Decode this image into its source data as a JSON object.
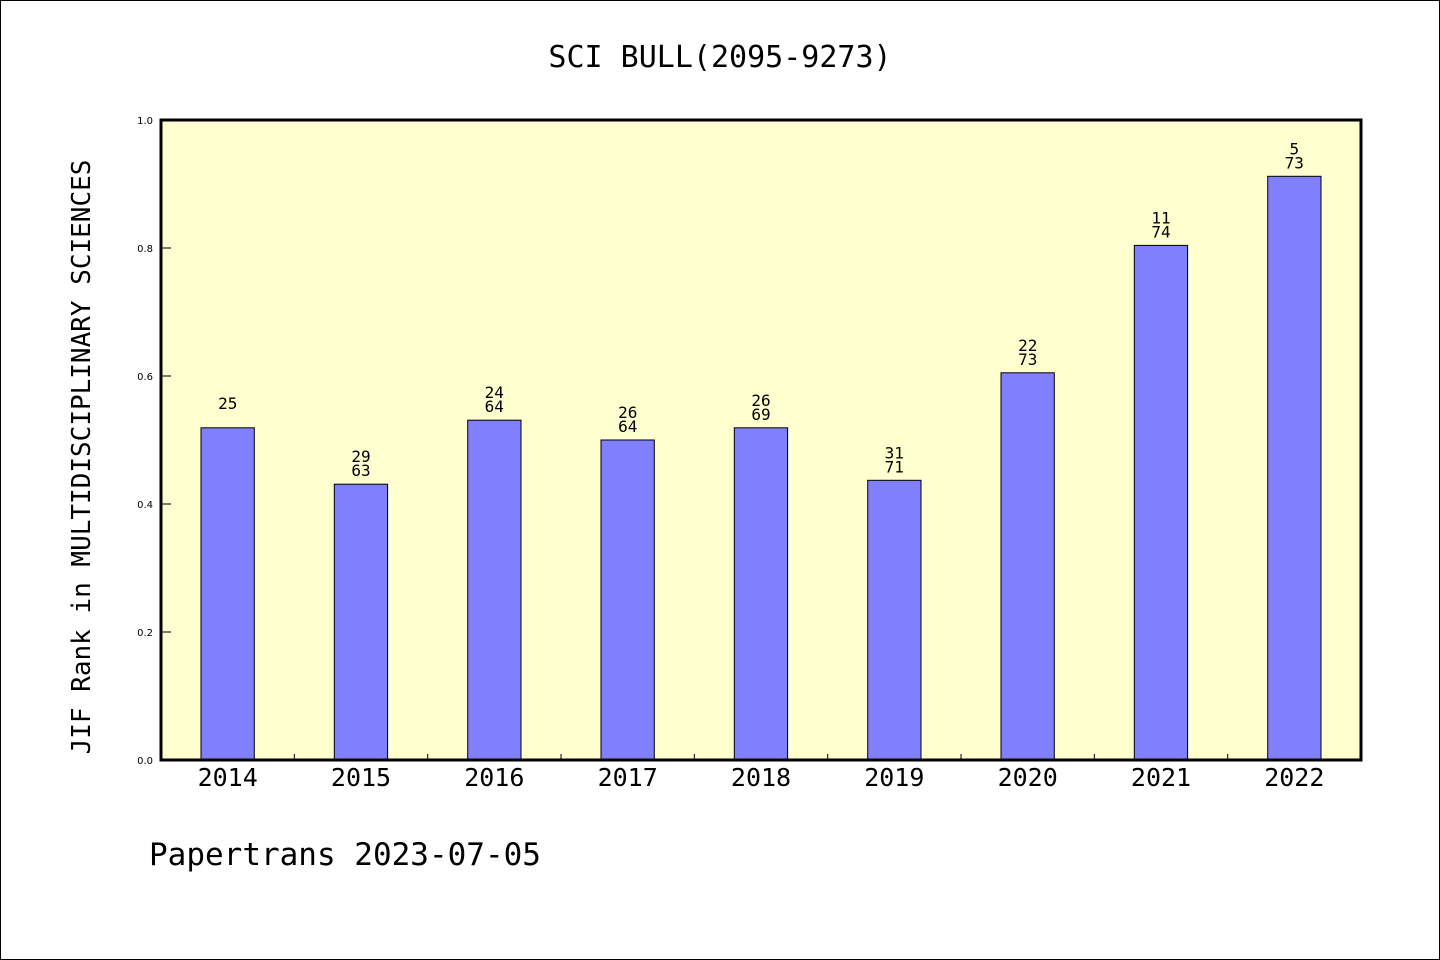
{
  "chart_data": {
    "type": "bar",
    "title": "SCI BULL(2095-9273)",
    "xlabel": "",
    "ylabel": "JIF Rank in MULTIDISCIPLINARY SCIENCES",
    "ylim": [
      0.0,
      1.0
    ],
    "yticks": [
      "0.0",
      "0.2",
      "0.4",
      "0.6",
      "0.8",
      "1.0"
    ],
    "grid": false,
    "categories": [
      "2014",
      "2015",
      "2016",
      "2017",
      "2018",
      "2019",
      "2020",
      "2021",
      "2022"
    ],
    "values": [
      0.519,
      0.431,
      0.531,
      0.5,
      0.519,
      0.437,
      0.605,
      0.804,
      0.912
    ],
    "labels": [
      [
        "25"
      ],
      [
        "29",
        "63"
      ],
      [
        "24",
        "64"
      ],
      [
        "26",
        "64"
      ],
      [
        "26",
        "69"
      ],
      [
        "31",
        "71"
      ],
      [
        "22",
        "73"
      ],
      [
        "11",
        "74"
      ],
      [
        "5",
        "73"
      ]
    ],
    "bar_color": "#8080ff",
    "plot_background": "#ffffd0"
  },
  "footer": "Papertrans 2023-07-05"
}
